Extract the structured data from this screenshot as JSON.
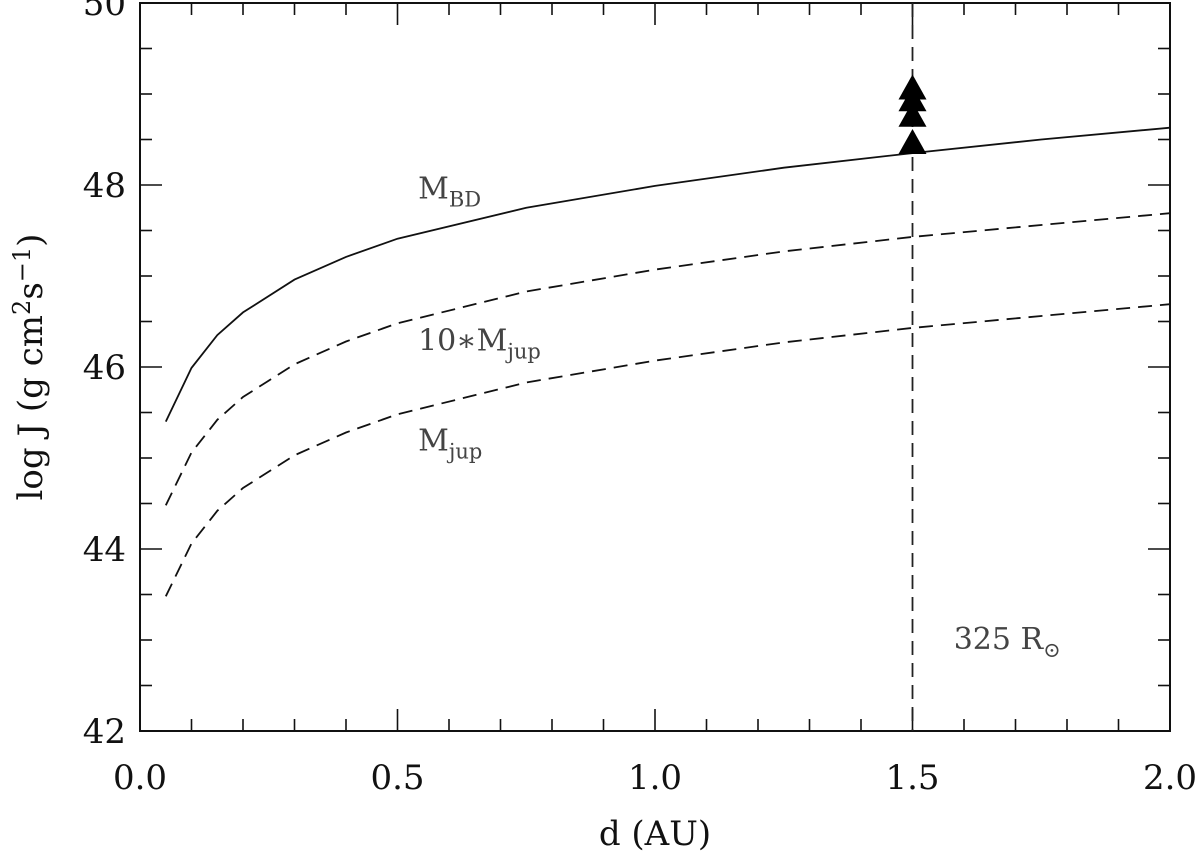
{
  "chart_data": {
    "type": "line",
    "xlabel": "d (AU)",
    "ylabel_parts": {
      "pre": "log J (g cm",
      "sup1": "2",
      "mid": "s",
      "sup2": "−1",
      "post": ")"
    },
    "xlim": [
      0.0,
      2.0
    ],
    "ylim": [
      42,
      50
    ],
    "x_ticks": [
      "0.0",
      "0.5",
      "1.0",
      "1.5",
      "2.0"
    ],
    "y_ticks": [
      "42",
      "44",
      "46",
      "48",
      "50"
    ],
    "grid": false,
    "series": [
      {
        "line_style": "solid",
        "x": [
          0.05,
          0.1,
          0.15,
          0.2,
          0.3,
          0.4,
          0.5,
          0.75,
          1.0,
          1.25,
          1.5,
          1.75,
          2.0
        ],
        "y": [
          45.4,
          45.99,
          46.35,
          46.6,
          46.96,
          47.21,
          47.41,
          47.75,
          47.99,
          48.19,
          48.35,
          48.5,
          48.63
        ]
      },
      {
        "line_style": "dashed",
        "x": [
          0.05,
          0.1,
          0.15,
          0.2,
          0.3,
          0.4,
          0.5,
          0.75,
          1.0,
          1.25,
          1.5,
          1.75,
          2.0
        ],
        "y": [
          44.48,
          45.06,
          45.42,
          45.67,
          46.03,
          46.28,
          46.48,
          46.83,
          47.07,
          47.27,
          47.43,
          47.56,
          47.69
        ]
      },
      {
        "line_style": "dashed",
        "x": [
          0.05,
          0.1,
          0.15,
          0.2,
          0.3,
          0.4,
          0.5,
          0.75,
          1.0,
          1.25,
          1.5,
          1.75,
          2.0
        ],
        "y": [
          43.48,
          44.06,
          44.42,
          44.67,
          45.03,
          45.28,
          45.48,
          45.83,
          46.07,
          46.27,
          46.43,
          46.56,
          46.69
        ]
      }
    ],
    "markers": {
      "shape": "filled-triangle",
      "x": [
        1.5,
        1.5,
        1.5,
        1.5
      ],
      "y": [
        48.45,
        48.75,
        48.92,
        49.05
      ]
    },
    "vline": {
      "x": 1.5,
      "line_style": "dashed"
    },
    "annotations": [
      {
        "main": "M",
        "sub": "BD",
        "x": 0.54,
        "y": 47.85
      },
      {
        "main": "10∗M",
        "sub": "jup",
        "x": 0.54,
        "y": 46.18
      },
      {
        "main": "M",
        "sub": "jup",
        "x": 0.54,
        "y": 45.08
      },
      {
        "main": "325 R",
        "sub": "⊙",
        "x": 1.58,
        "y": 42.9
      }
    ]
  }
}
